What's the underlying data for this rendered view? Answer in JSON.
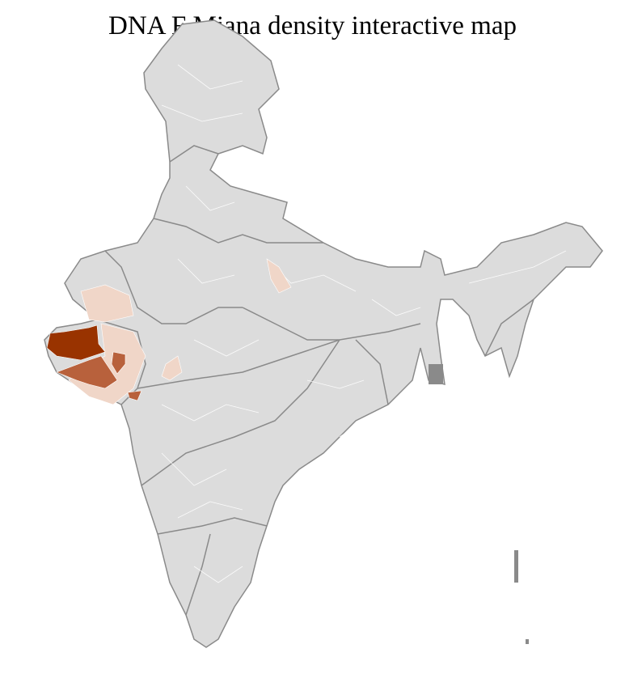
{
  "title": "DNA F Miana density interactive map",
  "colors": {
    "base": "#dcdcdc",
    "border": "#8a8a8a",
    "district_line": "#ffffff",
    "low": "#f0d6c8",
    "medium": "#b8613c",
    "high": "#993300"
  }
}
